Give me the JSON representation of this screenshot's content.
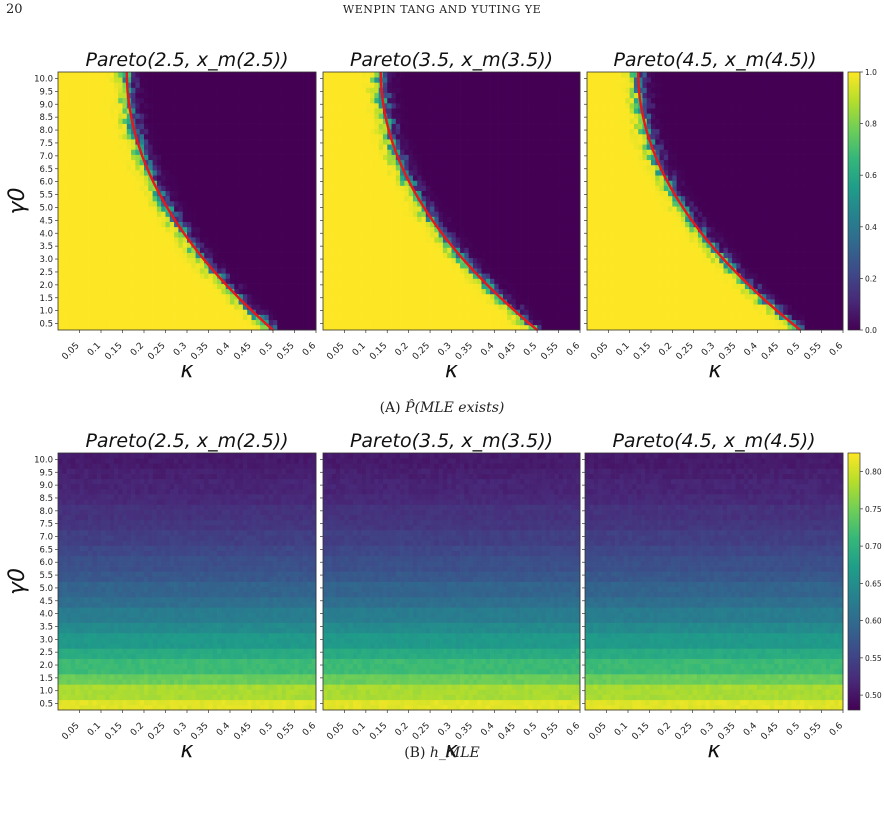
{
  "page": {
    "number": "20",
    "running_head": "WENPIN TANG AND YUTING YE",
    "trailing_text": ""
  },
  "captions": {
    "a_label": "(A)",
    "a_text": "P̂(MLE exists)",
    "b_label": "(B)",
    "b_text": "h_MLE"
  },
  "colors": {
    "viridis": [
      "#440154",
      "#482878",
      "#3e4989",
      "#31688e",
      "#26828e",
      "#1f9e89",
      "#35b779",
      "#6ece58",
      "#b5de2b",
      "#fde725"
    ],
    "boundary": "#e8171b"
  },
  "chart_data": [
    {
      "type": "heatmap",
      "figure": "A",
      "panels": [
        {
          "title": "Pareto(2.5, x_m(2.5))",
          "shape": 2.5,
          "boundary_kappa_at_gamma_0_5": 0.5,
          "boundary_kappa_at_gamma_10": 0.16
        },
        {
          "title": "Pareto(3.5, x_m(3.5))",
          "shape": 3.5,
          "boundary_kappa_at_gamma_0_5": 0.5,
          "boundary_kappa_at_gamma_10": 0.135
        },
        {
          "title": "Pareto(4.5, x_m(4.5))",
          "shape": 4.5,
          "boundary_kappa_at_gamma_0_5": 0.5,
          "boundary_kappa_at_gamma_10": 0.12
        }
      ],
      "xlabel": "κ",
      "ylabel": "γ0",
      "x_ticks": [
        "0.05",
        "0.1",
        "0.15",
        "0.2",
        "0.25",
        "0.3",
        "0.35",
        "0.4",
        "0.45",
        "0.5",
        "0.55",
        "0.6"
      ],
      "y_ticks": [
        "0.5",
        "1.0",
        "1.5",
        "2.0",
        "2.5",
        "3.0",
        "3.5",
        "4.0",
        "4.5",
        "5.0",
        "5.5",
        "6.0",
        "6.5",
        "7.0",
        "7.5",
        "8.0",
        "8.5",
        "9.0",
        "9.5",
        "10.0"
      ],
      "xlim": [
        0,
        0.6
      ],
      "ylim": [
        0.5,
        10
      ],
      "colorbar": {
        "range": [
          0,
          1
        ],
        "ticks": [
          "0.0",
          "0.2",
          "0.4",
          "0.6",
          "0.8",
          "1.0"
        ]
      }
    },
    {
      "type": "heatmap",
      "figure": "B",
      "panels": [
        {
          "title": "Pareto(2.5, x_m(2.5))",
          "shape": 2.5
        },
        {
          "title": "Pareto(3.5, x_m(3.5))",
          "shape": 3.5
        },
        {
          "title": "Pareto(4.5, x_m(4.5))",
          "shape": 4.5
        }
      ],
      "xlabel": "κ",
      "ylabel": "γ0",
      "x_ticks": [
        "0.05",
        "0.1",
        "0.15",
        "0.2",
        "0.25",
        "0.3",
        "0.35",
        "0.4",
        "0.45",
        "0.5",
        "0.55",
        "0.6"
      ],
      "y_ticks": [
        "0.5",
        "1.0",
        "1.5",
        "2.0",
        "2.5",
        "3.0",
        "3.5",
        "4.0",
        "4.5",
        "5.0",
        "5.5",
        "6.0",
        "6.5",
        "7.0",
        "7.5",
        "8.0",
        "8.5",
        "9.0",
        "9.5",
        "10.0"
      ],
      "xlim": [
        0,
        0.6
      ],
      "ylim": [
        0.5,
        10
      ],
      "row_values_gamma_0_5_to_10": [
        0.81,
        0.78,
        0.745,
        0.715,
        0.69,
        0.665,
        0.645,
        0.625,
        0.605,
        0.59,
        0.575,
        0.565,
        0.555,
        0.545,
        0.535,
        0.53,
        0.52,
        0.515,
        0.51,
        0.505
      ],
      "colorbar": {
        "range": [
          0.48,
          0.825
        ],
        "ticks": [
          "0.50",
          "0.55",
          "0.60",
          "0.65",
          "0.70",
          "0.75",
          "0.80"
        ]
      }
    }
  ]
}
